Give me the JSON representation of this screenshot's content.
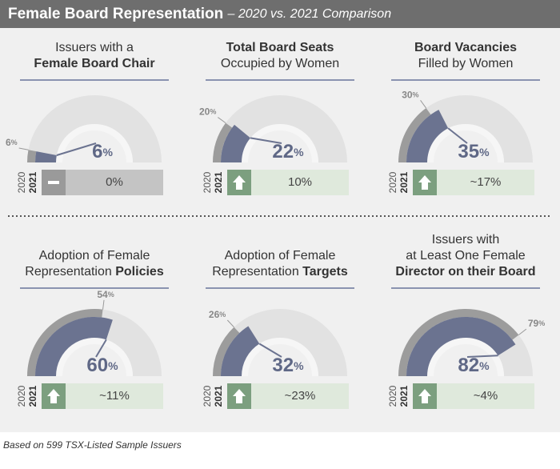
{
  "title": "Female Board Representation",
  "subtitle": "– 2020 vs. 2021 Comparison",
  "footnote": "Based on 599 TSX-Listed Sample Issuers",
  "chart_data": [
    {
      "type": "gauge",
      "title_lines": [
        [
          {
            "text": "Issuers with a"
          }
        ],
        [
          {
            "text": "Female Board Chair",
            "bold": true
          }
        ]
      ],
      "categories": [
        "2020",
        "2021"
      ],
      "values": [
        6,
        6
      ],
      "unit": "%",
      "change": "0%",
      "trend": "flat",
      "ylim": [
        0,
        100
      ]
    },
    {
      "type": "gauge",
      "title_lines": [
        [
          {
            "text": "Total Board Seats",
            "bold": true
          }
        ],
        [
          {
            "text": "Occupied by Women"
          }
        ]
      ],
      "categories": [
        "2020",
        "2021"
      ],
      "values": [
        20,
        22
      ],
      "unit": "%",
      "change": "10%",
      "trend": "up",
      "ylim": [
        0,
        100
      ]
    },
    {
      "type": "gauge",
      "title_lines": [
        [
          {
            "text": "Board Vacancies",
            "bold": true
          }
        ],
        [
          {
            "text": "Filled by Women"
          }
        ]
      ],
      "categories": [
        "2020",
        "2021"
      ],
      "values": [
        30,
        35
      ],
      "unit": "%",
      "change": "~17%",
      "trend": "up",
      "ylim": [
        0,
        100
      ]
    },
    {
      "type": "gauge",
      "title_lines": [
        [
          {
            "text": "Adoption of Female"
          }
        ],
        [
          {
            "text": "Representation "
          },
          {
            "text": "Policies",
            "bold": true
          }
        ]
      ],
      "categories": [
        "2020",
        "2021"
      ],
      "values": [
        54,
        60
      ],
      "unit": "%",
      "change": "~11%",
      "trend": "up",
      "ylim": [
        0,
        100
      ]
    },
    {
      "type": "gauge",
      "title_lines": [
        [
          {
            "text": "Adoption of Female"
          }
        ],
        [
          {
            "text": "Representation "
          },
          {
            "text": "Targets",
            "bold": true
          }
        ]
      ],
      "categories": [
        "2020",
        "2021"
      ],
      "values": [
        26,
        32
      ],
      "unit": "%",
      "change": "~23%",
      "trend": "up",
      "ylim": [
        0,
        100
      ]
    },
    {
      "type": "gauge",
      "title_lines": [
        [
          {
            "text": "Issuers with"
          }
        ],
        [
          {
            "text": "at Least One Female"
          }
        ],
        [
          {
            "text": "Director on their Board",
            "bold": true
          }
        ]
      ],
      "categories": [
        "2020",
        "2021"
      ],
      "values": [
        79,
        82
      ],
      "unit": "%",
      "change": "~4%",
      "trend": "up",
      "ylim": [
        0,
        100
      ]
    }
  ]
}
